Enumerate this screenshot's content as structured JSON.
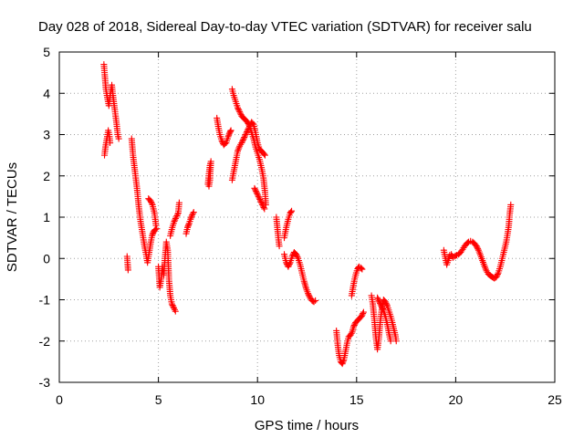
{
  "chart_data": {
    "type": "scatter",
    "title": "Day 028 of 2018, Sidereal Day-to-day VTEC variation (SDTVAR) for receiver salu",
    "xlabel": "GPS time / hours",
    "ylabel": "SDTVAR / TECUs",
    "xlim": [
      0,
      25
    ],
    "ylim": [
      -3,
      5
    ],
    "xticks": [
      0,
      5,
      10,
      15,
      20,
      25
    ],
    "yticks": [
      -3,
      -2,
      -1,
      0,
      1,
      2,
      3,
      4,
      5
    ],
    "grid": true,
    "marker": "plus",
    "color": "#ff0000",
    "series": [
      {
        "name": "SDTVAR",
        "segments": [
          [
            [
              2.25,
              4.7
            ],
            [
              2.3,
              4.4
            ],
            [
              2.35,
              4.1
            ],
            [
              2.42,
              3.9
            ],
            [
              2.5,
              3.7
            ],
            [
              2.58,
              4.0
            ],
            [
              2.65,
              4.2
            ],
            [
              2.72,
              3.9
            ],
            [
              2.8,
              3.6
            ],
            [
              2.88,
              3.3
            ],
            [
              2.95,
              3.0
            ],
            [
              3.0,
              2.9
            ]
          ],
          [
            [
              2.28,
              2.5
            ],
            [
              2.33,
              2.7
            ],
            [
              2.4,
              2.9
            ],
            [
              2.47,
              3.1
            ],
            [
              2.52,
              3.0
            ],
            [
              2.56,
              2.8
            ]
          ],
          [
            [
              3.42,
              0.05
            ],
            [
              3.47,
              -0.28
            ]
          ],
          [
            [
              3.65,
              2.9
            ],
            [
              3.72,
              2.5
            ],
            [
              3.82,
              2.1
            ],
            [
              3.92,
              1.7
            ],
            [
              4.0,
              1.3
            ],
            [
              4.1,
              0.9
            ],
            [
              4.2,
              0.6
            ],
            [
              4.3,
              0.3
            ],
            [
              4.38,
              0.1
            ],
            [
              4.45,
              -0.1
            ],
            [
              4.52,
              0.1
            ],
            [
              4.6,
              0.35
            ],
            [
              4.68,
              0.55
            ],
            [
              4.76,
              0.65
            ],
            [
              4.84,
              0.7
            ],
            [
              4.92,
              0.72
            ]
          ],
          [
            [
              4.5,
              1.45
            ],
            [
              4.6,
              1.4
            ],
            [
              4.7,
              1.3
            ],
            [
              4.8,
              1.1
            ],
            [
              4.88,
              0.8
            ]
          ],
          [
            [
              5.0,
              -0.2
            ],
            [
              5.07,
              -0.7
            ],
            [
              5.14,
              -0.5
            ],
            [
              5.2,
              -0.2
            ],
            [
              5.27,
              -0.4
            ],
            [
              5.33,
              0.0
            ],
            [
              5.4,
              0.4
            ],
            [
              5.47,
              0.2
            ],
            [
              5.53,
              -0.5
            ],
            [
              5.6,
              -0.9
            ],
            [
              5.68,
              -1.1
            ],
            [
              5.78,
              -1.2
            ],
            [
              5.86,
              -1.28
            ]
          ],
          [
            [
              5.6,
              0.55
            ],
            [
              5.7,
              0.75
            ],
            [
              5.8,
              0.9
            ],
            [
              5.9,
              1.0
            ],
            [
              6.0,
              1.1
            ],
            [
              6.05,
              1.35
            ]
          ],
          [
            [
              6.4,
              0.6
            ],
            [
              6.47,
              0.75
            ],
            [
              6.55,
              0.85
            ],
            [
              6.62,
              0.95
            ],
            [
              6.7,
              1.05
            ],
            [
              6.78,
              1.12
            ]
          ],
          [
            [
              7.5,
              1.8
            ],
            [
              7.55,
              2.05
            ],
            [
              7.6,
              2.25
            ],
            [
              7.65,
              2.35
            ],
            [
              7.6,
              1.9
            ],
            [
              7.55,
              1.75
            ]
          ],
          [
            [
              7.95,
              3.4
            ],
            [
              8.02,
              3.2
            ],
            [
              8.1,
              3.0
            ],
            [
              8.2,
              2.85
            ],
            [
              8.3,
              2.75
            ],
            [
              8.42,
              2.8
            ],
            [
              8.52,
              2.95
            ],
            [
              8.6,
              3.05
            ],
            [
              8.66,
              3.1
            ]
          ],
          [
            [
              8.72,
              4.1
            ],
            [
              8.8,
              3.95
            ],
            [
              8.9,
              3.8
            ],
            [
              9.0,
              3.65
            ],
            [
              9.1,
              3.55
            ],
            [
              9.2,
              3.45
            ],
            [
              9.3,
              3.4
            ],
            [
              9.4,
              3.35
            ],
            [
              9.5,
              3.3
            ],
            [
              9.6,
              3.2
            ],
            [
              9.7,
              3.05
            ],
            [
              9.8,
              2.9
            ],
            [
              9.9,
              2.7
            ],
            [
              10.0,
              2.55
            ],
            [
              10.1,
              2.4
            ],
            [
              10.2,
              2.2
            ],
            [
              10.3,
              1.95
            ],
            [
              10.38,
              1.6
            ],
            [
              10.42,
              1.3
            ]
          ],
          [
            [
              8.72,
              1.9
            ],
            [
              8.8,
              2.1
            ],
            [
              8.9,
              2.35
            ],
            [
              9.0,
              2.6
            ],
            [
              9.1,
              2.72
            ],
            [
              9.2,
              2.8
            ],
            [
              9.3,
              2.9
            ],
            [
              9.4,
              3.0
            ],
            [
              9.5,
              3.1
            ],
            [
              9.6,
              3.2
            ],
            [
              9.7,
              3.3
            ],
            [
              9.8,
              3.25
            ],
            [
              9.9,
              3.05
            ],
            [
              10.0,
              2.8
            ],
            [
              10.1,
              2.65
            ],
            [
              10.2,
              2.6
            ],
            [
              10.3,
              2.55
            ],
            [
              10.38,
              2.5
            ]
          ],
          [
            [
              9.85,
              1.7
            ],
            [
              9.95,
              1.6
            ],
            [
              10.05,
              1.5
            ],
            [
              10.15,
              1.4
            ],
            [
              10.25,
              1.3
            ],
            [
              10.35,
              1.2
            ]
          ],
          [
            [
              10.95,
              1.0
            ],
            [
              11.0,
              0.75
            ],
            [
              11.05,
              0.5
            ],
            [
              11.1,
              0.3
            ]
          ],
          [
            [
              11.35,
              0.5
            ],
            [
              11.45,
              0.75
            ],
            [
              11.55,
              0.95
            ],
            [
              11.65,
              1.1
            ],
            [
              11.72,
              1.15
            ]
          ],
          [
            [
              11.35,
              0.1
            ],
            [
              11.45,
              -0.1
            ],
            [
              11.55,
              -0.2
            ],
            [
              11.65,
              -0.1
            ],
            [
              11.75,
              0.05
            ],
            [
              11.85,
              0.15
            ],
            [
              11.95,
              0.1
            ],
            [
              12.05,
              0.0
            ],
            [
              12.15,
              -0.15
            ],
            [
              12.25,
              -0.35
            ],
            [
              12.35,
              -0.55
            ],
            [
              12.45,
              -0.72
            ],
            [
              12.55,
              -0.85
            ],
            [
              12.65,
              -0.95
            ],
            [
              12.75,
              -1.02
            ],
            [
              12.85,
              -1.05
            ],
            [
              12.92,
              -1.02
            ]
          ],
          [
            [
              13.98,
              -1.75
            ],
            [
              14.05,
              -2.1
            ],
            [
              14.12,
              -2.35
            ],
            [
              14.2,
              -2.5
            ],
            [
              14.28,
              -2.55
            ],
            [
              14.36,
              -2.45
            ],
            [
              14.44,
              -2.25
            ],
            [
              14.52,
              -2.05
            ],
            [
              14.6,
              -1.9
            ],
            [
              14.7,
              -1.85
            ],
            [
              14.78,
              -1.78
            ],
            [
              14.85,
              -1.65
            ],
            [
              14.95,
              -1.55
            ],
            [
              15.05,
              -1.5
            ],
            [
              15.15,
              -1.45
            ],
            [
              15.25,
              -1.4
            ],
            [
              15.35,
              -1.3
            ]
          ],
          [
            [
              14.75,
              -0.9
            ],
            [
              14.82,
              -0.7
            ],
            [
              14.9,
              -0.5
            ],
            [
              14.98,
              -0.35
            ],
            [
              15.05,
              -0.25
            ],
            [
              15.12,
              -0.2
            ],
            [
              15.2,
              -0.22
            ],
            [
              15.28,
              -0.26
            ]
          ],
          [
            [
              15.75,
              -0.9
            ],
            [
              15.82,
              -1.1
            ],
            [
              15.9,
              -1.5
            ],
            [
              15.97,
              -1.9
            ],
            [
              16.05,
              -2.2
            ],
            [
              16.12,
              -1.95
            ],
            [
              16.2,
              -1.5
            ],
            [
              16.28,
              -1.2
            ],
            [
              16.36,
              -1.0
            ],
            [
              16.45,
              -1.05
            ],
            [
              16.55,
              -1.15
            ],
            [
              16.65,
              -1.3
            ],
            [
              16.75,
              -1.45
            ],
            [
              16.85,
              -1.65
            ],
            [
              16.95,
              -1.85
            ],
            [
              17.0,
              -2.0
            ]
          ],
          [
            [
              16.05,
              -0.95
            ],
            [
              16.15,
              -1.05
            ],
            [
              16.25,
              -1.15
            ],
            [
              16.35,
              -1.25
            ],
            [
              16.45,
              -1.4
            ],
            [
              16.55,
              -1.6
            ],
            [
              16.65,
              -1.85
            ],
            [
              16.72,
              -2.0
            ]
          ],
          [
            [
              19.4,
              0.2
            ],
            [
              19.48,
              0.0
            ],
            [
              19.55,
              -0.15
            ],
            [
              19.62,
              -0.05
            ],
            [
              19.7,
              0.08
            ],
            [
              19.78,
              0.1
            ],
            [
              19.86,
              0.02
            ],
            [
              19.94,
              0.05
            ],
            [
              20.05,
              0.08
            ],
            [
              20.15,
              0.1
            ],
            [
              20.25,
              0.15
            ],
            [
              20.35,
              0.22
            ],
            [
              20.45,
              0.3
            ],
            [
              20.55,
              0.36
            ],
            [
              20.65,
              0.4
            ],
            [
              20.75,
              0.42
            ],
            [
              20.85,
              0.4
            ],
            [
              20.95,
              0.36
            ],
            [
              21.05,
              0.3
            ],
            [
              21.15,
              0.2
            ],
            [
              21.25,
              0.08
            ],
            [
              21.35,
              -0.05
            ],
            [
              21.45,
              -0.18
            ],
            [
              21.55,
              -0.3
            ],
            [
              21.65,
              -0.38
            ],
            [
              21.75,
              -0.42
            ],
            [
              21.85,
              -0.45
            ],
            [
              21.95,
              -0.48
            ],
            [
              22.05,
              -0.45
            ],
            [
              22.15,
              -0.35
            ],
            [
              22.25,
              -0.2
            ],
            [
              22.35,
              0.0
            ],
            [
              22.45,
              0.2
            ],
            [
              22.55,
              0.4
            ],
            [
              22.62,
              0.6
            ],
            [
              22.68,
              0.8
            ],
            [
              22.72,
              1.05
            ],
            [
              22.78,
              1.3
            ]
          ]
        ]
      }
    ]
  }
}
